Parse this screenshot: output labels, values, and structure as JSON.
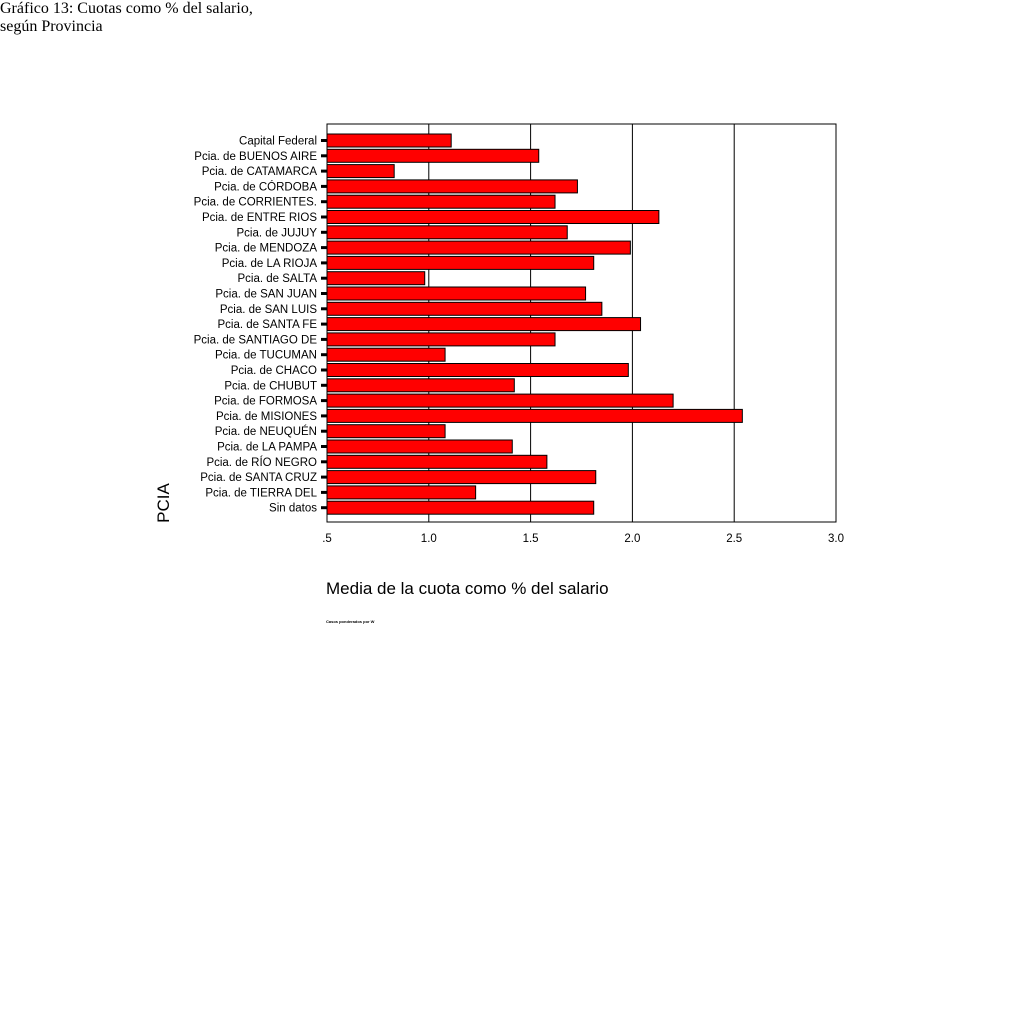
{
  "chart_data": {
    "type": "bar",
    "orientation": "horizontal",
    "title": "Gráfico 13: Cuotas como % del salario,",
    "subtitle": "según Provincia",
    "xlabel": "Media de la cuota como % del salario",
    "ylabel": "PCIA",
    "xlim": [
      0.5,
      3.0
    ],
    "xticks": [
      ".5",
      "1.0",
      "1.5",
      "2.0",
      "2.5",
      "3.0"
    ],
    "grid": "vertical",
    "bar_color": "#ff0000",
    "categories": [
      "Capital Federal",
      "Pcia. de BUENOS AIRE",
      "Pcia. de CATAMARCA",
      "Pcia. de CÓRDOBA",
      "Pcia. de CORRIENTES.",
      "Pcia. de ENTRE RIOS",
      "Pcia. de JUJUY",
      "Pcia. de MENDOZA",
      "Pcia. de LA RIOJA",
      "Pcia. de SALTA",
      "Pcia. de SAN JUAN",
      "Pcia. de SAN LUIS",
      "Pcia. de SANTA FE",
      "Pcia. de SANTIAGO DE",
      "Pcia. de TUCUMAN",
      "Pcia. de CHACO",
      "Pcia. de CHUBUT",
      "Pcia. de FORMOSA",
      "Pcia. de MISIONES",
      "Pcia. de NEUQUÉN",
      "Pcia. de LA PAMPA",
      "Pcia. de RÍO NEGRO",
      "Pcia. de SANTA CRUZ",
      "Pcia. de TIERRA DEL",
      "Sin datos"
    ],
    "values": [
      1.11,
      1.54,
      0.83,
      1.73,
      1.62,
      2.13,
      1.68,
      1.99,
      1.81,
      0.98,
      1.77,
      1.85,
      2.04,
      1.62,
      1.08,
      1.98,
      1.42,
      2.2,
      2.54,
      1.08,
      1.41,
      1.58,
      1.82,
      1.23,
      1.81
    ],
    "footnote": "Casos ponderados por W"
  }
}
